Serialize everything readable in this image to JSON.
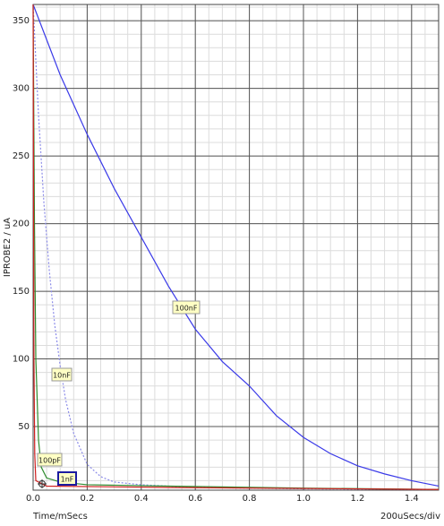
{
  "chart_data": {
    "type": "line",
    "ylabel": "IPROBE2 / uA",
    "xlabel": "Time/mSecs",
    "xscale_label": "200uSecs/div",
    "xlim": [
      0,
      1.5
    ],
    "ylim": [
      3,
      362
    ],
    "xticks": [
      {
        "value": 0,
        "label": "0.0"
      },
      0.2,
      0.4,
      0.6,
      0.8,
      {
        "value": 1,
        "label": "1.0"
      },
      1.2,
      1.4
    ],
    "yticks": [
      50,
      100,
      150,
      200,
      250,
      300,
      350
    ],
    "grid": true,
    "series": [
      {
        "name": "100nF",
        "color": "#3a3ae8",
        "dash": false,
        "x": [
          0,
          0.1,
          0.2,
          0.3,
          0.4,
          0.5,
          0.6,
          0.7,
          0.8,
          0.9,
          1.0,
          1.1,
          1.2,
          1.3,
          1.4,
          1.5
        ],
        "values": [
          362,
          310,
          266,
          226,
          190,
          154,
          122,
          98,
          80,
          58,
          42,
          30,
          21,
          15,
          10,
          6
        ]
      },
      {
        "name": "10nF",
        "color": "#8a8ae8",
        "dash": true,
        "x": [
          0,
          0.02,
          0.04,
          0.06,
          0.08,
          0.1,
          0.12,
          0.15,
          0.2,
          0.25,
          0.3,
          0.4,
          0.6,
          0.8,
          1.0,
          1.5
        ],
        "values": [
          362,
          280,
          215,
          165,
          125,
          95,
          70,
          45,
          22,
          13,
          9,
          7,
          5,
          4.5,
          4,
          3.5
        ]
      },
      {
        "name": "100pF",
        "color": "#2e8b2e",
        "dash": false,
        "x": [
          0,
          0.005,
          0.01,
          0.02,
          0.03,
          0.05,
          0.1,
          0.2,
          0.5,
          1.0,
          1.5
        ],
        "values": [
          362,
          200,
          100,
          40,
          20,
          12,
          9,
          7,
          6,
          4.5,
          3.5
        ]
      },
      {
        "name": "1nF",
        "color": "#d02020",
        "dash": false,
        "x": [
          0,
          0.003,
          0.006,
          0.01,
          0.05,
          0.5,
          1.5
        ],
        "values": [
          362,
          100,
          30,
          10,
          6,
          5,
          3.5
        ]
      }
    ]
  }
}
